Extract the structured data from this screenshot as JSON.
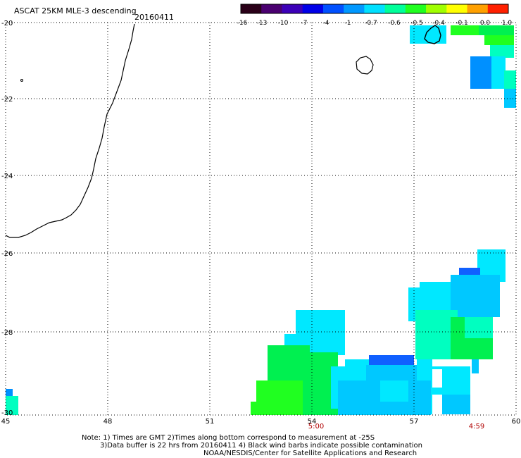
{
  "header": {
    "title": "ASCAT 25KM MLE-3 descending",
    "date": "20160411"
  },
  "colorbar": {
    "labels": [
      "-16",
      "-13",
      "-10",
      "-7",
      "-4",
      "-1",
      "-0.7",
      "-0.6",
      "-0.5",
      "-0.4",
      "-0.1",
      "0.0",
      "1.0"
    ],
    "colors": [
      "#2a0018",
      "#4a0070",
      "#3c00b8",
      "#0000e8",
      "#0050ff",
      "#0098ff",
      "#00e0ff",
      "#00ff9a",
      "#20ff20",
      "#a0ff00",
      "#ffff00",
      "#ffa000",
      "#ff2000"
    ]
  },
  "axes": {
    "x_ticks": [
      "45",
      "48",
      "51",
      "54",
      "57",
      "60"
    ],
    "y_ticks": [
      "-20",
      "-22",
      "-24",
      "-26",
      "-28",
      "-30"
    ]
  },
  "times": [
    {
      "label": "5:00"
    },
    {
      "label": "4:59"
    }
  ],
  "notes": {
    "line1": "Note: 1) Times are GMT 2)Times along bottom correspond to measurement at -25S",
    "line2": "3)Data buffer is 22 hrs from 20160411 4) Black wind barbs indicate possible contamination",
    "line3": "NOAA/NESDIS/Center for Satellite Applications and Research"
  },
  "palette": {
    "grid": "#000000",
    "coast": "#000000",
    "cyan": "#00e8ff",
    "lightblue": "#00c8ff",
    "blue": "#0090ff",
    "deepblue": "#1060ff",
    "green": "#00f050",
    "lime": "#20ff20",
    "aqua": "#00ffc0"
  }
}
